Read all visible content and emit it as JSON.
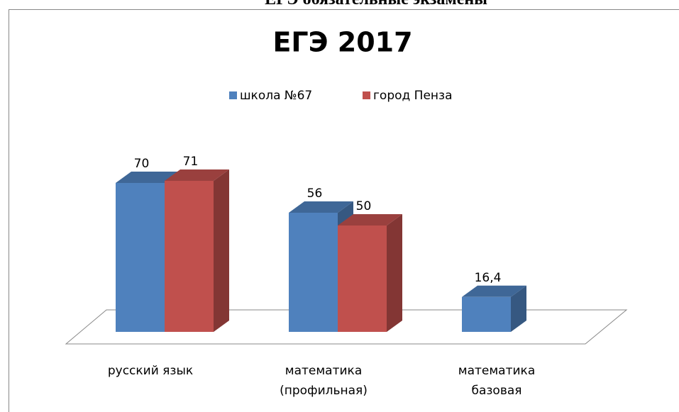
{
  "page_title": "ЕГЭ обязательные экзамены",
  "chart_data": {
    "type": "bar3d",
    "title": "ЕГЭ 2017",
    "categories": [
      "русский язык",
      "математика (профильная)",
      "математика базовая"
    ],
    "series": [
      {
        "name": "школа №67",
        "color": "#4f81bd",
        "values": [
          70,
          56,
          16.4
        ],
        "value_labels": [
          "70",
          "56",
          "16,4"
        ]
      },
      {
        "name": "город Пенза",
        "color": "#c0504d",
        "values": [
          71,
          50,
          null
        ]
      }
    ],
    "legend": "top"
  }
}
